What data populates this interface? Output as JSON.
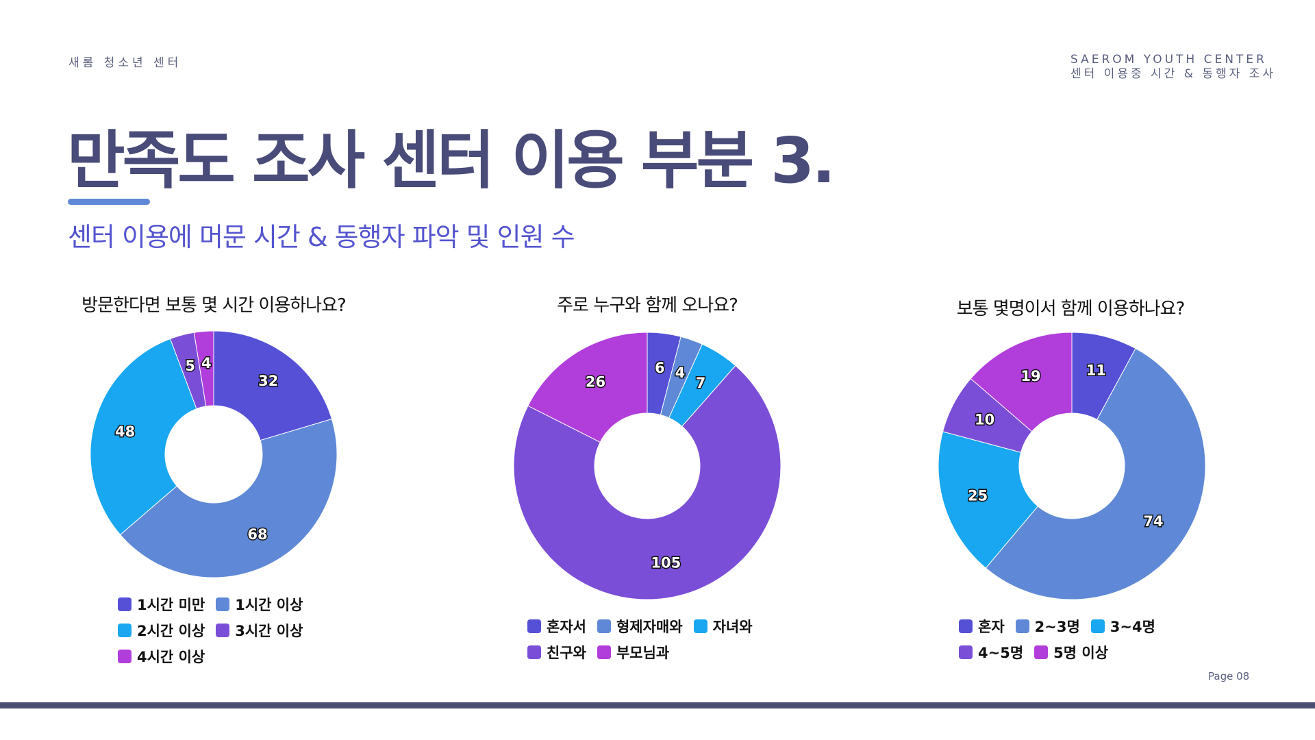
{
  "header": {
    "org_name": "새롬 청소년 센터",
    "org_name_en": "SAEROM YOUTH CENTER",
    "doc_subtitle": "센터 이용중 시간 & 동행자 조사"
  },
  "title": "만족도 조사 센터 이용 부분 3.",
  "subtitle": "센터 이용에 머문 시간 & 동행자 파악 및 인원 수",
  "page": "Page 08",
  "chart_data": [
    {
      "type": "pie",
      "donut": true,
      "title": "방문한다면 보통 몇 시간 이용하나요?",
      "categories": [
        "1시간 미만",
        "1시간 이상",
        "2시간 이상",
        "3시간 이상",
        "4시간 이상"
      ],
      "values": [
        32,
        68,
        48,
        5,
        4
      ],
      "colors": [
        "#5650d6",
        "#5f89d6",
        "#18a7f0",
        "#7b4ed8",
        "#b13ddb"
      ],
      "data_labels": true,
      "legend_position": "bottom"
    },
    {
      "type": "pie",
      "donut": true,
      "title": "주로 누구와 함께 오나요?",
      "categories": [
        "혼자서",
        "형제자매와",
        "자녀와",
        "친구와",
        "부모님과"
      ],
      "values": [
        6,
        4,
        7,
        105,
        26
      ],
      "colors": [
        "#5650d6",
        "#5f89d6",
        "#18a7f0",
        "#7b4ed8",
        "#b13ddb"
      ],
      "data_labels": true,
      "legend_position": "bottom"
    },
    {
      "type": "pie",
      "donut": true,
      "title": "보통 몇명이서 함께 이용하나요?",
      "categories": [
        "혼자",
        "2~3명",
        "3~4명",
        "4~5명",
        "5명 이상"
      ],
      "values": [
        11,
        74,
        25,
        10,
        19
      ],
      "colors": [
        "#5650d6",
        "#5f89d6",
        "#18a7f0",
        "#7b4ed8",
        "#b13ddb"
      ],
      "data_labels": true,
      "legend_position": "bottom"
    }
  ]
}
